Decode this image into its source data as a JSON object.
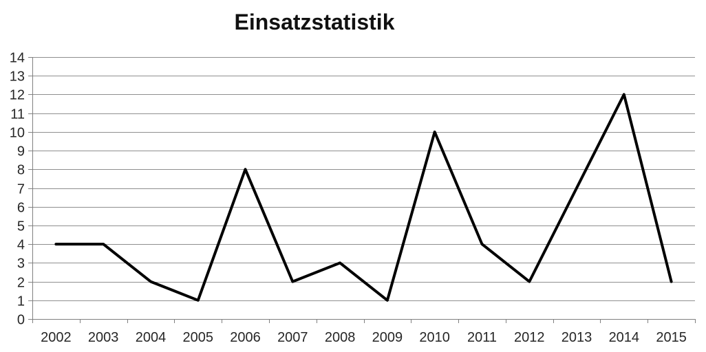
{
  "chart_data": {
    "type": "line",
    "title": "Einsatzstatistik",
    "categories": [
      "2002",
      "2003",
      "2004",
      "2005",
      "2006",
      "2007",
      "2008",
      "2009",
      "2010",
      "2011",
      "2012",
      "2013",
      "2014",
      "2015"
    ],
    "values": [
      4,
      4,
      2,
      1,
      8,
      2,
      3,
      1,
      10,
      4,
      2,
      7,
      12,
      2
    ],
    "xlabel": "",
    "ylabel": "",
    "ylim": [
      0,
      14
    ],
    "ytick_step": 1,
    "grid": true,
    "legend_position": "none",
    "colors": {
      "line": "#000000",
      "gridline": "#8e8e8e",
      "axis": "#7f7f7f",
      "tick_text": "#262626",
      "title_text": "#111111",
      "background": "#ffffff"
    }
  }
}
